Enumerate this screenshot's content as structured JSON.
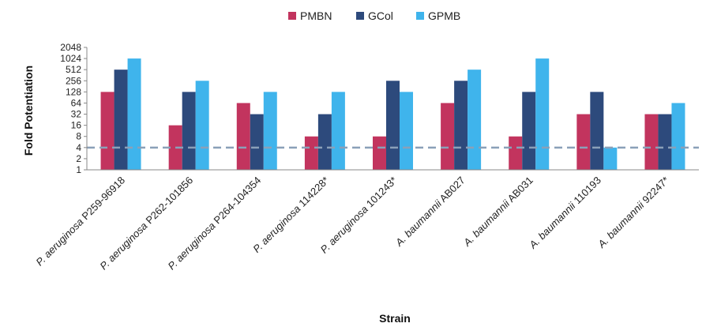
{
  "chart_data": {
    "type": "bar",
    "title": "",
    "xlabel": "Strain",
    "ylabel": "Fold Potentiation",
    "yscale": "log2",
    "ylim": [
      1,
      2048
    ],
    "yticks": [
      "1",
      "2",
      "4",
      "8",
      "16",
      "32",
      "64",
      "128",
      "256",
      "512",
      "1024",
      "2048"
    ],
    "reference_line": {
      "y": 4,
      "style": "dashed",
      "color": "#8aa0b8"
    },
    "legend": {
      "position": "top-center"
    },
    "categories": [
      {
        "prefix": "P. aeruginosa",
        "suffix": " P259-96918"
      },
      {
        "prefix": "P. aeruginosa",
        "suffix": " P262-101856"
      },
      {
        "prefix": "P. aeruginosa",
        "suffix": " P264-104354"
      },
      {
        "prefix": "P. aeruginosa",
        "suffix": " 114228*"
      },
      {
        "prefix": "P. aeruginosa",
        "suffix": " 101243*"
      },
      {
        "prefix": "A. baumannii",
        "suffix": " AB027"
      },
      {
        "prefix": "A. baumannii",
        "suffix": " AB031"
      },
      {
        "prefix": "A. baumannii",
        "suffix": " 110193"
      },
      {
        "prefix": "A. baumannii",
        "suffix": " 92247*"
      }
    ],
    "series": [
      {
        "name": "PMBN",
        "color": "#c2345e",
        "values": [
          128,
          16,
          64,
          8,
          8,
          64,
          8,
          32,
          32
        ]
      },
      {
        "name": "GCol",
        "color": "#2d4a7c",
        "values": [
          512,
          128,
          32,
          32,
          256,
          256,
          128,
          128,
          32
        ]
      },
      {
        "name": "GPMB",
        "color": "#3fb4ec",
        "values": [
          1024,
          256,
          128,
          128,
          128,
          512,
          1024,
          4,
          64
        ]
      }
    ]
  }
}
